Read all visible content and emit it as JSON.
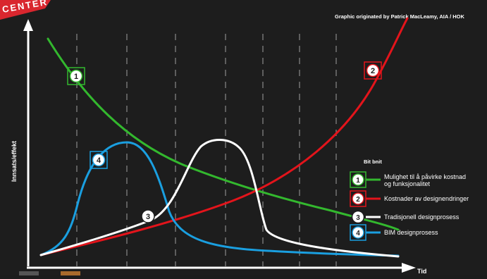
{
  "colors": {
    "background": "#1d1d1d",
    "axis": "#ffffff",
    "grid": "#8a8a8a",
    "green": "#33b82e",
    "red": "#e3141b",
    "white": "#ffffff",
    "blue": "#1a9fe0",
    "logo_red": "#d9262e",
    "legend_text": "#ffffff"
  },
  "header": {
    "logo_text": "CENTER",
    "credit": "Graphic originated by Patrick MacLeamy, AIA / HOK"
  },
  "axes": {
    "ylabel": "Innsats/effekt",
    "xlabel": "Tid"
  },
  "legend": {
    "title_fragment": "Bit bnit",
    "items": [
      {
        "number": "1",
        "color_key": "green",
        "line1": "Mulighet til å påvirke kostnad",
        "line2": "og funksjonalitet"
      },
      {
        "number": "2",
        "color_key": "red",
        "line1": "Kostnader av designendringer",
        "line2": ""
      },
      {
        "number": "3",
        "color_key": "white",
        "line1": "Tradisjonell designprosess",
        "line2": ""
      },
      {
        "number": "4",
        "color_key": "blue",
        "line1": "BIM designprosess",
        "line2": ""
      }
    ]
  },
  "curves": [
    {
      "number": "1",
      "color_key": "green",
      "name": ""
    },
    {
      "number": "2",
      "color_key": "red",
      "name": ""
    },
    {
      "number": "3",
      "color_key": "white",
      "name": ""
    },
    {
      "number": "4",
      "color_key": "blue",
      "name": ""
    }
  ],
  "markers": {
    "bottom_swatches": [
      "#555555",
      "#a86a2c"
    ]
  }
}
